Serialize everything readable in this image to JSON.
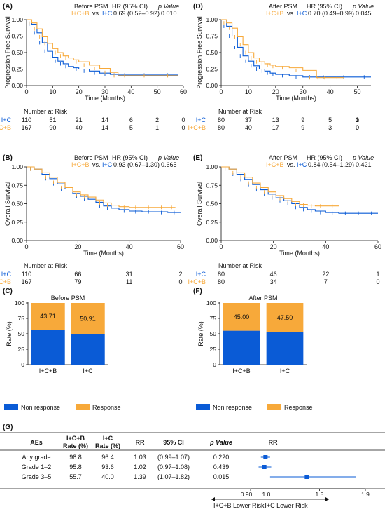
{
  "colors": {
    "blue": "#0a5bd6",
    "orange": "#f7a93a",
    "axis": "#111111"
  },
  "panels": {
    "A": {
      "label": "(A)",
      "phase": "Before PSM",
      "hr_header": "HR (95% CI)",
      "p_header": "p Value",
      "legend_a": "I+C+B",
      "legend_vs": "vs.",
      "legend_b": "I+C",
      "hr": "0.69 (0.52–0.92)",
      "p": "0.010",
      "ylabel": "Progression Free Survival",
      "xlabel": "Time (Months)",
      "risk_title": "Number at Risk",
      "risk_rows": [
        {
          "name": "I+C",
          "values": [
            "110",
            "51",
            "21",
            "14",
            "6",
            "2",
            "0"
          ]
        },
        {
          "name": "I+C+B",
          "values": [
            "167",
            "90",
            "40",
            "14",
            "5",
            "1",
            "0"
          ]
        }
      ]
    },
    "B": {
      "label": "(B)",
      "phase": "Before PSM",
      "hr_header": "HR (95% CI)",
      "p_header": "p Value",
      "legend_a": "I+C+B",
      "legend_vs": "vs.",
      "legend_b": "I+C",
      "hr": "0.93 (0.67–1.30)",
      "p": "0.665",
      "ylabel": "Overall Survival",
      "xlabel": "Time (Months)",
      "risk_title": "Number at Risk",
      "risk_rows": [
        {
          "name": "I+C",
          "values": [
            "110",
            "66",
            "31",
            "2"
          ]
        },
        {
          "name": "I+C+B",
          "values": [
            "167",
            "79",
            "11",
            "0"
          ]
        }
      ]
    },
    "D": {
      "label": "(D)",
      "phase": "After PSM",
      "hr_header": "HR (95% CI)",
      "p_header": "p Value",
      "legend_a": "I+C+B",
      "legend_vs": "vs.",
      "legend_b": "I+C",
      "hr": "0.70 (0.49–0.99)",
      "p": "0.045",
      "ylabel": "Progression Free Survival",
      "xlabel": "Time (Months)",
      "risk_title": "Number at Risk",
      "risk_rows": [
        {
          "name": "I+C",
          "values": [
            "80",
            "37",
            "13",
            "9",
            "5",
            "1",
            "0"
          ]
        },
        {
          "name": "I+C+B",
          "values": [
            "80",
            "40",
            "17",
            "9",
            "3",
            "0",
            "0"
          ]
        }
      ]
    },
    "E": {
      "label": "(E)",
      "phase": "After PSM",
      "hr_header": "HR (95% CI)",
      "p_header": "p Value",
      "legend_a": "I+C+B",
      "legend_vs": "vs.",
      "legend_b": "I+C",
      "hr": "0.84 (0.54–1.29)",
      "p": "0.421",
      "ylabel": "Overall Survival",
      "xlabel": "Time (Months)",
      "risk_title": "Number at Risk",
      "risk_rows": [
        {
          "name": "I+C",
          "values": [
            "80",
            "46",
            "22",
            "1"
          ]
        },
        {
          "name": "I+C+B",
          "values": [
            "80",
            "34",
            "7",
            "0"
          ]
        }
      ]
    },
    "C": {
      "label": "(C)",
      "title": "Before PSM",
      "ylabel": "Rate (%)",
      "legend": [
        "Non response",
        "Response"
      ]
    },
    "F": {
      "label": "(F)",
      "title": "After PSM",
      "ylabel": "Rate (%)",
      "legend": [
        "Non response",
        "Response"
      ]
    },
    "G": {
      "label": "(G)",
      "headers": [
        "AEs",
        "I+C+B Rate (%)",
        "I+C Rate (%)",
        "RR",
        "95% CI",
        "p Value",
        "RR"
      ],
      "rows": [
        {
          "ae": "Any grade",
          "icb": "98.8",
          "ic": "96.4",
          "rr": "1.03",
          "ci": "(0.99–1.07)",
          "p": "0.220"
        },
        {
          "ae": "Grade 1–2",
          "icb": "95.8",
          "ic": "93.6",
          "rr": "1.02",
          "ci": "(0.97–1.08)",
          "p": "0.439"
        },
        {
          "ae": "Grade 3–5",
          "icb": "55.7",
          "ic": "40.0",
          "rr": "1.39",
          "ci": "(1.07–1.82)",
          "p": "0.015"
        }
      ],
      "forest_left": "I+C+B Lower Risk",
      "forest_right": "I+C Lower Risk"
    }
  },
  "chart_data": [
    {
      "type": "line",
      "panel": "A",
      "xlabel": "Time (Months)",
      "ylabel": "Progression Free Survival",
      "xlim": [
        0,
        60
      ],
      "ylim": [
        0,
        1
      ],
      "xticks": [
        0,
        10,
        20,
        30,
        40,
        50,
        60
      ],
      "yticks": [
        0,
        0.25,
        0.5,
        0.75,
        1.0
      ],
      "series": [
        {
          "name": "I+C",
          "color": "#0a5bd6",
          "x": [
            0,
            2,
            4,
            6,
            8,
            10,
            12,
            14,
            16,
            18,
            20,
            24,
            28,
            32,
            35,
            40,
            50,
            58
          ],
          "y": [
            1,
            0.93,
            0.8,
            0.65,
            0.52,
            0.43,
            0.37,
            0.33,
            0.29,
            0.27,
            0.25,
            0.22,
            0.19,
            0.17,
            0.16,
            0.16,
            0.16,
            0.16
          ]
        },
        {
          "name": "I+C+B",
          "color": "#f7a93a",
          "x": [
            0,
            2,
            4,
            6,
            8,
            10,
            12,
            14,
            16,
            18,
            20,
            24,
            28,
            32,
            35,
            40,
            50,
            58
          ],
          "y": [
            1,
            0.95,
            0.86,
            0.74,
            0.64,
            0.56,
            0.5,
            0.45,
            0.42,
            0.39,
            0.36,
            0.31,
            0.26,
            0.2,
            0.15,
            0.15,
            0.15,
            0.15
          ]
        }
      ]
    },
    {
      "type": "line",
      "panel": "D",
      "xlabel": "Time (Months)",
      "ylabel": "Progression Free Survival",
      "xlim": [
        0,
        55
      ],
      "ylim": [
        0,
        1
      ],
      "xticks": [
        0,
        10,
        20,
        30,
        40,
        50
      ],
      "yticks": [
        0,
        0.25,
        0.5,
        0.75,
        1.0
      ],
      "series": [
        {
          "name": "I+C",
          "color": "#0a5bd6",
          "x": [
            0,
            2,
            4,
            6,
            8,
            10,
            12,
            14,
            16,
            18,
            20,
            25,
            30,
            35,
            40,
            50,
            55
          ],
          "y": [
            1,
            0.9,
            0.75,
            0.58,
            0.45,
            0.37,
            0.3,
            0.25,
            0.22,
            0.19,
            0.17,
            0.15,
            0.13,
            0.13,
            0.13,
            0.13,
            0.13
          ]
        },
        {
          "name": "I+C+B",
          "color": "#f7a93a",
          "x": [
            0,
            2,
            4,
            6,
            8,
            10,
            12,
            14,
            16,
            18,
            20,
            25,
            30,
            35,
            36,
            40,
            45
          ],
          "y": [
            1,
            0.95,
            0.87,
            0.74,
            0.62,
            0.5,
            0.42,
            0.36,
            0.33,
            0.31,
            0.29,
            0.27,
            0.23,
            0.12,
            0.12,
            0.12,
            0.12
          ]
        }
      ]
    },
    {
      "type": "line",
      "panel": "B",
      "xlabel": "Time (Months)",
      "ylabel": "Overall Survival",
      "xlim": [
        0,
        60
      ],
      "ylim": [
        0,
        1
      ],
      "xticks": [
        0,
        20,
        40,
        60
      ],
      "yticks": [
        0,
        0.25,
        0.5,
        0.75,
        1.0
      ],
      "series": [
        {
          "name": "I+C",
          "color": "#0a5bd6",
          "x": [
            0,
            3,
            6,
            9,
            12,
            15,
            18,
            21,
            24,
            27,
            30,
            33,
            36,
            40,
            45,
            50,
            55,
            60
          ],
          "y": [
            1,
            0.97,
            0.9,
            0.84,
            0.77,
            0.7,
            0.64,
            0.6,
            0.56,
            0.52,
            0.47,
            0.44,
            0.42,
            0.4,
            0.39,
            0.39,
            0.38,
            0.38
          ]
        },
        {
          "name": "I+C+B",
          "color": "#f7a93a",
          "x": [
            0,
            3,
            6,
            9,
            12,
            15,
            18,
            21,
            24,
            27,
            30,
            33,
            36,
            40,
            45,
            50,
            55,
            58
          ],
          "y": [
            1,
            0.97,
            0.92,
            0.86,
            0.79,
            0.72,
            0.66,
            0.62,
            0.59,
            0.55,
            0.51,
            0.48,
            0.46,
            0.45,
            0.45,
            0.45,
            0.45,
            0.45
          ]
        }
      ]
    },
    {
      "type": "line",
      "panel": "E",
      "xlabel": "Time (Months)",
      "ylabel": "Overall Survival",
      "xlim": [
        0,
        60
      ],
      "ylim": [
        0,
        1
      ],
      "xticks": [
        0,
        20,
        40,
        60
      ],
      "yticks": [
        0,
        0.25,
        0.5,
        0.75,
        1.0
      ],
      "series": [
        {
          "name": "I+C",
          "color": "#0a5bd6",
          "x": [
            0,
            3,
            6,
            9,
            12,
            15,
            18,
            21,
            24,
            27,
            30,
            33,
            36,
            40,
            45,
            50,
            55,
            60
          ],
          "y": [
            1,
            0.97,
            0.9,
            0.83,
            0.76,
            0.69,
            0.63,
            0.58,
            0.54,
            0.5,
            0.45,
            0.42,
            0.4,
            0.38,
            0.37,
            0.37,
            0.37,
            0.37
          ]
        },
        {
          "name": "I+C+B",
          "color": "#f7a93a",
          "x": [
            0,
            3,
            6,
            9,
            12,
            15,
            18,
            21,
            24,
            27,
            30,
            33,
            36,
            40,
            45
          ],
          "y": [
            1,
            0.97,
            0.92,
            0.86,
            0.78,
            0.72,
            0.66,
            0.61,
            0.57,
            0.53,
            0.49,
            0.48,
            0.47,
            0.47,
            0.47
          ]
        }
      ]
    },
    {
      "type": "bar",
      "panel": "C",
      "title": "Before PSM",
      "stacked": true,
      "categories": [
        "I+C+B",
        "I+C"
      ],
      "ylabel": "Rate (%)",
      "ylim": [
        0,
        100
      ],
      "yticks": [
        0,
        25,
        50,
        75,
        100
      ],
      "series": [
        {
          "name": "Non response",
          "color": "#0a5bd6",
          "values": [
            56.29,
            49.09
          ]
        },
        {
          "name": "Response",
          "color": "#f7a93a",
          "values": [
            43.71,
            50.91
          ]
        }
      ]
    },
    {
      "type": "bar",
      "panel": "F",
      "title": "After PSM",
      "stacked": true,
      "categories": [
        "I+C+B",
        "I+C"
      ],
      "ylabel": "Rate (%)",
      "ylim": [
        0,
        100
      ],
      "yticks": [
        0,
        25,
        50,
        75,
        100
      ],
      "series": [
        {
          "name": "Non response",
          "color": "#0a5bd6",
          "values": [
            55.0,
            52.5
          ]
        },
        {
          "name": "Response",
          "color": "#f7a93a",
          "values": [
            45.0,
            47.5
          ]
        }
      ]
    },
    {
      "type": "scatter",
      "panel": "G",
      "title": "RR",
      "xlim": [
        0.9,
        1.9
      ],
      "xticks": [
        0.9,
        1.0,
        1.5,
        1.9
      ],
      "xticklabels": [
        "0.90",
        "1.0",
        "1.5",
        "1.9"
      ],
      "points": [
        {
          "label": "Any grade",
          "rr": 1.03,
          "lo": 0.99,
          "hi": 1.07
        },
        {
          "label": "Grade 1–2",
          "rr": 1.02,
          "lo": 0.97,
          "hi": 1.08
        },
        {
          "label": "Grade 3–5",
          "rr": 1.39,
          "lo": 1.07,
          "hi": 1.82
        }
      ]
    }
  ]
}
